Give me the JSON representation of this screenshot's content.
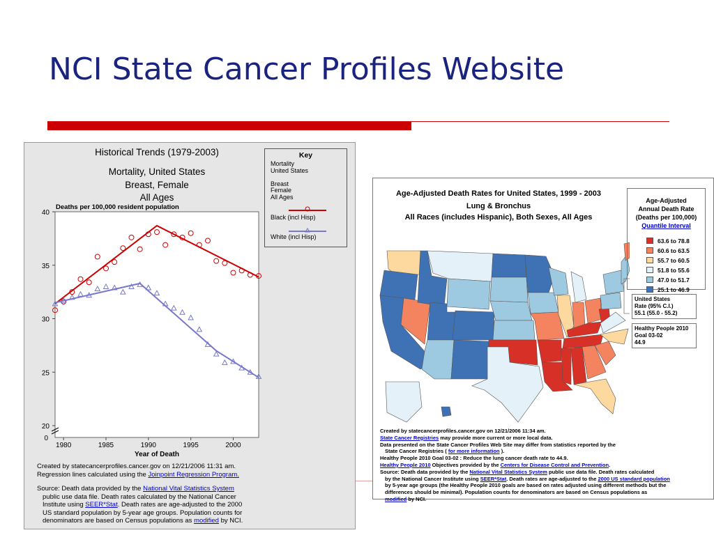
{
  "slide": {
    "title": "NCI State Cancer Profiles Website"
  },
  "left_panel": {
    "title": "Historical Trends (1979-2003)",
    "subtitle_lines": [
      "Mortality, United States",
      "Breast, Female",
      "All Ages"
    ],
    "ylabel": "Deaths per 100,000 resident population",
    "xlabel": "Year of Death",
    "key": {
      "title": "Key",
      "lines": [
        "Mortality",
        "United States",
        "",
        "Breast",
        "Female",
        "All Ages"
      ],
      "black_label": "Black (incl Hisp)",
      "white_label": "White (incl Hisp)"
    },
    "created_line1": "Created by statecancerprofiles.cancer.gov on 12/21/2006 11:31 am.",
    "created_line2_pre": "Regression lines calculated using the ",
    "created_line2_link": "Joinpoint Regression Program.",
    "source": {
      "l1_pre": "Source: Death data provided by the ",
      "l1_link": "National Vital Statistics System",
      "l2": "public use data file.  Death rates calculated by the National Cancer",
      "l3_pre": "Institute using ",
      "l3_link": "SEER*Stat",
      "l3_post": ".  Death rates are age-adjusted to the 2000",
      "l4": "US standard population by 5-year age groups. Population counts for",
      "l5_pre": "denominators are based on Census populations as ",
      "l5_link": "modified",
      "l5_post": " by NCI."
    }
  },
  "right_panel": {
    "title_lines": [
      "Age-Adjusted Death Rates for United States, 1999 - 2003",
      "Lung & Bronchus",
      "All Races (includes Hispanic), Both Sexes, All Ages"
    ],
    "legend": {
      "title_lines": [
        "Age-Adjusted",
        "Annual Death Rate",
        "(Deaths per 100,000)"
      ],
      "link": "Quantile Interval",
      "items": [
        {
          "label": "63.6  to  78.8",
          "color": "#d73027"
        },
        {
          "label": "60.6  to  63.5",
          "color": "#f4845f"
        },
        {
          "label": "55.7  to  60.5",
          "color": "#fdd9a0"
        },
        {
          "label": "51.8  to  55.6",
          "color": "#e4f1f8"
        },
        {
          "label": "47.0  to  51.7",
          "color": "#9ecae1"
        },
        {
          "label": "25.1  to  46.9",
          "color": "#3f72b5"
        }
      ]
    },
    "us_box": [
      "United States",
      "Rate  (95% C.I.)",
      "55.1  (55.0 - 55.2)"
    ],
    "hp_box": [
      "Healthy People 2010",
      "Goal 03-02",
      "44.9"
    ],
    "notes": {
      "n1": "Created by statecancerprofiles.cancer.gov on 12/21/2006 11:34 am.",
      "n2_link": "State Cancer Registries",
      "n2_post": " may provide more current or more local data.",
      "n3": "Data presented on the State Cancer Profiles Web Site may differ from statistics reported by the",
      "n4_pre": "State Cancer Registries ( ",
      "n4_link": "for more information",
      "n4_post": " ).",
      "n5": "Healthy People 2010 Goal 03-02 : Reduce the lung cancer death rate to 44.9.",
      "n6_link": "Healthy People 2010",
      "n6_mid": " Objectives provided by the  ",
      "n6_link2": "Centers for Disease Control and Prevention",
      "n6_post": ".",
      "n7": "Source: Death data provided by the ",
      "n7_link": "National Vital Statistics System",
      "n7_post": " public use data file. Death rates calculated",
      "n8_pre": "by the National Cancer Institute using ",
      "n8_link": "SEER*Stat",
      "n8_mid": ". Death rates are age-adjusted to the  ",
      "n8_link2": "2000 US standard population",
      "n9": "by 5-year age groups (the Healthy People 2010 goals are based on rates adjusted using different methods but the",
      "n10": "differences should be minimal). Population counts for denominators are based on Census populations as",
      "n11_link": "modified",
      "n11_post": " by NCI."
    }
  },
  "chart_data": {
    "type": "scatter",
    "title": "Historical Trends (1979-2003)",
    "xlabel": "Year of Death",
    "ylabel": "Deaths per 100,000 resident population",
    "xlim": [
      1979,
      2003
    ],
    "ylim": [
      20,
      40
    ],
    "x_ticks": [
      1980,
      1985,
      1990,
      1995,
      2000
    ],
    "y_ticks": [
      20,
      25,
      30,
      35,
      40
    ],
    "grid": false,
    "series": [
      {
        "name": "Black (incl Hisp)",
        "color": "#cc0000",
        "marker": "circle",
        "points": [
          [
            1979,
            30.8
          ],
          [
            1980,
            31.6
          ],
          [
            1981,
            32.5
          ],
          [
            1982,
            33.7
          ],
          [
            1983,
            33.4
          ],
          [
            1984,
            35.8
          ],
          [
            1985,
            34.7
          ],
          [
            1986,
            35.3
          ],
          [
            1987,
            36.6
          ],
          [
            1988,
            37.6
          ],
          [
            1989,
            36.5
          ],
          [
            1990,
            37.9
          ],
          [
            1991,
            38.1
          ],
          [
            1992,
            36.9
          ],
          [
            1993,
            37.9
          ],
          [
            1994,
            37.6
          ],
          [
            1995,
            38.0
          ],
          [
            1996,
            36.9
          ],
          [
            1997,
            37.3
          ],
          [
            1998,
            35.4
          ],
          [
            1999,
            35.2
          ],
          [
            2000,
            34.3
          ],
          [
            2001,
            34.5
          ],
          [
            2002,
            34.1
          ],
          [
            2003,
            34.0
          ]
        ],
        "trend": [
          [
            1979,
            31.4
          ],
          [
            1991,
            38.7
          ],
          [
            2003,
            33.9
          ]
        ]
      },
      {
        "name": "White (incl Hisp)",
        "color": "#7777cc",
        "marker": "triangle",
        "points": [
          [
            1979,
            31.4
          ],
          [
            1980,
            31.7
          ],
          [
            1981,
            32.0
          ],
          [
            1982,
            32.3
          ],
          [
            1983,
            32.2
          ],
          [
            1984,
            32.8
          ],
          [
            1985,
            33.0
          ],
          [
            1986,
            32.9
          ],
          [
            1987,
            32.5
          ],
          [
            1988,
            33.0
          ],
          [
            1989,
            33.2
          ],
          [
            1990,
            32.9
          ],
          [
            1991,
            32.4
          ],
          [
            1992,
            31.4
          ],
          [
            1993,
            31.0
          ],
          [
            1994,
            30.6
          ],
          [
            1995,
            30.1
          ],
          [
            1996,
            29.0
          ],
          [
            1997,
            27.6
          ],
          [
            1998,
            26.7
          ],
          [
            1999,
            25.9
          ],
          [
            2000,
            26.0
          ],
          [
            2001,
            25.4
          ],
          [
            2002,
            25.0
          ],
          [
            2003,
            24.6
          ]
        ],
        "trend": [
          [
            1979,
            31.5
          ],
          [
            1989,
            33.3
          ],
          [
            1998,
            27.0
          ],
          [
            2003,
            24.5
          ]
        ]
      }
    ]
  }
}
